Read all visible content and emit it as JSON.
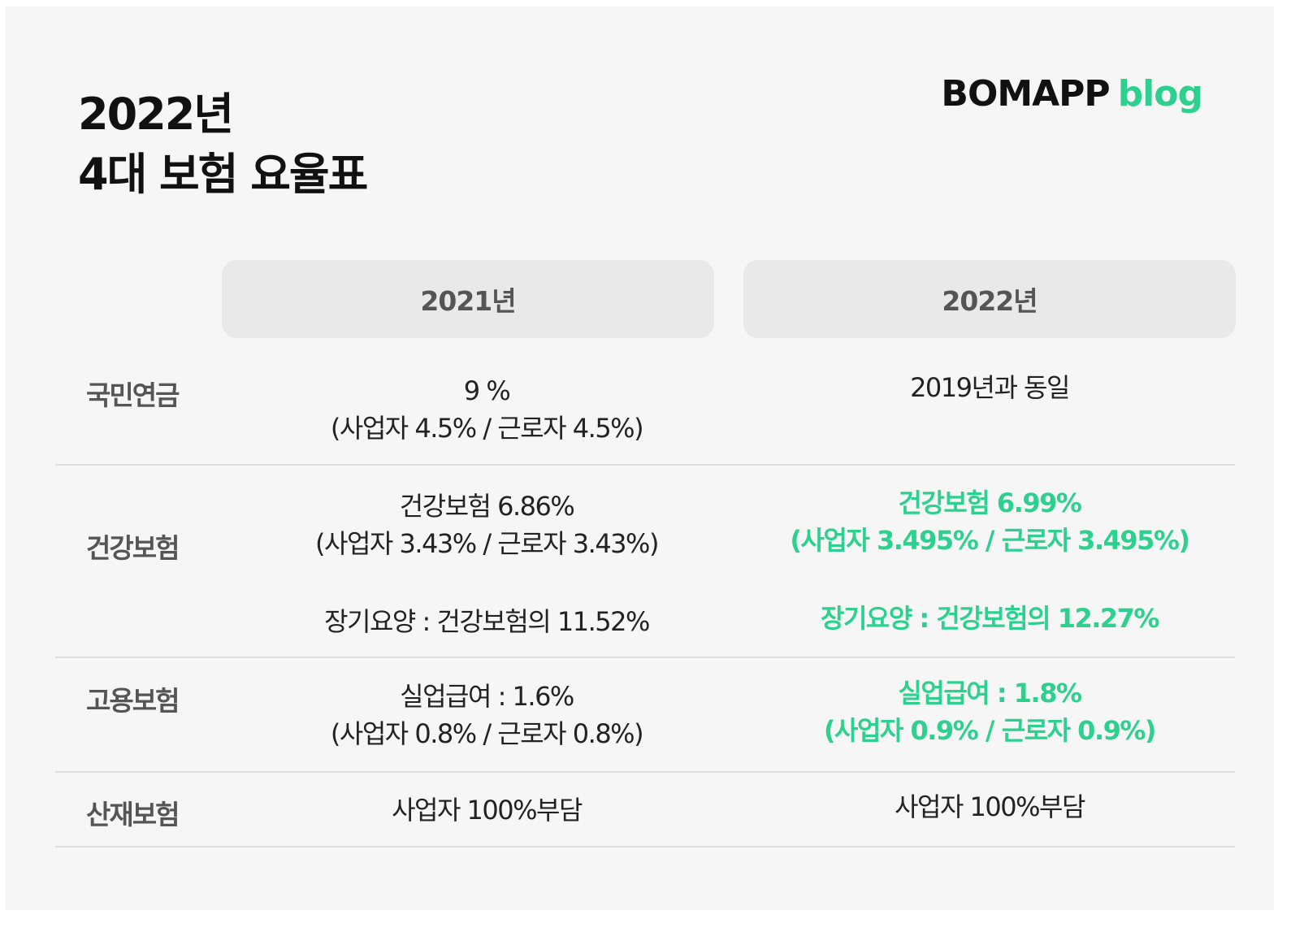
{
  "title": {
    "line1": "2022년",
    "line2": "4대 보험 요율표"
  },
  "logo": {
    "brand": "BOMAPP",
    "suffix": "blog"
  },
  "columns": [
    "2021년",
    "2022년"
  ],
  "rows": [
    {
      "label": "국민연금",
      "y2021": [
        "9 %",
        "(사업자 4.5% / 근로자 4.5%)"
      ],
      "y2022": [
        "2019년과 동일"
      ]
    },
    {
      "label": "건강보험",
      "y2021": [
        "건강보험 6.86%",
        "(사업자 3.43% / 근로자 3.43%)"
      ],
      "y2022": [
        "건강보험 6.99%",
        "(사업자 3.495% / 근로자 3.495%)"
      ],
      "y2021_extra": "장기요양 : 건강보험의 11.52%",
      "y2022_extra": "장기요양 : 건강보험의 12.27%"
    },
    {
      "label": "고용보험",
      "y2021": [
        "실업급여 : 1.6%",
        "(사업자 0.8% / 근로자 0.8%)"
      ],
      "y2022": [
        "실업급여 : 1.8%",
        "(사업자 0.9% / 근로자 0.9%)"
      ]
    },
    {
      "label": "산재보험",
      "y2021": [
        "사업자 100%부담"
      ],
      "y2022": [
        "사업자 100%부담"
      ]
    }
  ],
  "colors": {
    "accent": "#2ed08f",
    "text": "#222222",
    "label": "#555555",
    "header_bg": "#e9e9e9",
    "card_bg": "#f6f6f6"
  }
}
